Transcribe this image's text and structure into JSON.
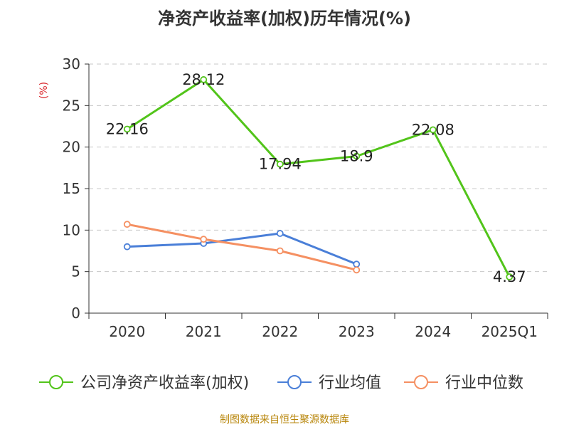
{
  "chart_data": {
    "type": "line",
    "title": "净资产收益率(加权)历年情况(%)",
    "ylabel": "(%)",
    "categories": [
      "2020",
      "2021",
      "2022",
      "2023",
      "2024",
      "2025Q1"
    ],
    "ylim": [
      0,
      30
    ],
    "yticks": [
      0,
      5,
      10,
      15,
      20,
      25,
      30
    ],
    "grid": true,
    "legend_position": "bottom",
    "series": [
      {
        "name": "公司净资产收益率(加权)",
        "color": "#52c41a",
        "values": [
          22.16,
          28.12,
          17.94,
          18.9,
          22.08,
          4.37
        ],
        "labels": [
          "22.16",
          "28.12",
          "17.94",
          "18.9",
          "22.08",
          "4.37"
        ]
      },
      {
        "name": "行业均值",
        "color": "#4a7fd8",
        "values": [
          8.0,
          8.4,
          9.6,
          5.9,
          null,
          null
        ]
      },
      {
        "name": "行业中位数",
        "color": "#f59062",
        "values": [
          10.7,
          8.9,
          7.5,
          5.2,
          null,
          null
        ]
      }
    ]
  },
  "footer": {
    "source": "制图数据来自恒生聚源数据库"
  }
}
